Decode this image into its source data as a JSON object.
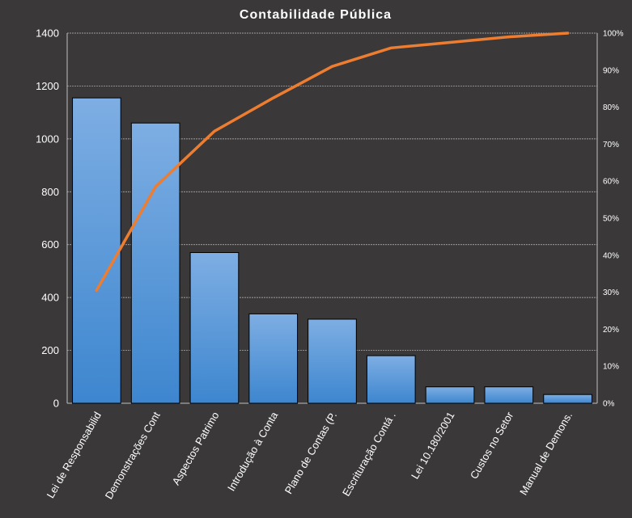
{
  "chart_data": {
    "type": "bar",
    "title": "Contabilidade  Pública",
    "categories": [
      "Lei de Responsabilid",
      "Demonstrações Cont",
      "Aspectos Patrimo",
      "Introdução à Conta",
      "Plano de Contas (P.",
      "Escrituração Contá .",
      "Lei 10.180/2001",
      "Custos no Setor",
      "Manual de Demons."
    ],
    "series": [
      {
        "type": "bar",
        "values": [
          1155,
          1060,
          570,
          338,
          318,
          180,
          62,
          62,
          33
        ]
      },
      {
        "type": "line",
        "axis": "right",
        "values": [
          30.5,
          58.5,
          73.5,
          82.5,
          91,
          96,
          97.5,
          99,
          100
        ]
      }
    ],
    "ylim": [
      0,
      1400
    ],
    "yticks": [
      0,
      200,
      400,
      600,
      800,
      1000,
      1200,
      1400
    ],
    "y2lim": [
      0,
      100
    ],
    "y2ticks": [
      "0%",
      "10%",
      "20%",
      "30%",
      "40%",
      "50%",
      "60%",
      "70%",
      "80%",
      "90%",
      "100%"
    ],
    "grid": true,
    "legend": "none",
    "colors": {
      "background": "#3a3838",
      "bar_top": "#7eaee3",
      "bar_bottom": "#3d86cf",
      "bar_edge": "#000000",
      "line": "#ed7d31",
      "grid": "#bfbfbf",
      "text": "#ffffff"
    }
  }
}
